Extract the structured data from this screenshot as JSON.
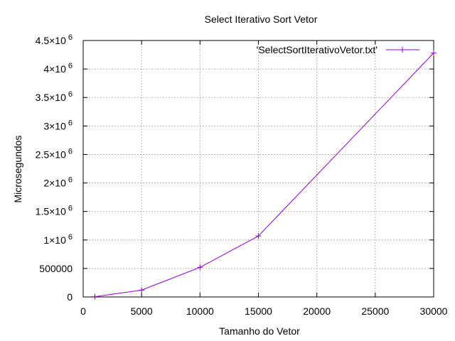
{
  "chart_data": {
    "type": "line",
    "title": "Select Iterativo Sort Vetor",
    "xlabel": "Tamanho do Vetor",
    "ylabel": "Microsegundos",
    "xlim": [
      0,
      30000
    ],
    "ylim": [
      0,
      4500000
    ],
    "x_ticks": [
      {
        "value": 0,
        "label": "0"
      },
      {
        "value": 5000,
        "label": "5000"
      },
      {
        "value": 10000,
        "label": "10000"
      },
      {
        "value": 15000,
        "label": "15000"
      },
      {
        "value": 20000,
        "label": "20000"
      },
      {
        "value": 25000,
        "label": "25000"
      },
      {
        "value": 30000,
        "label": "30000"
      }
    ],
    "y_ticks": [
      {
        "value": 0,
        "mant": "0",
        "exp": ""
      },
      {
        "value": 500000,
        "mant": "500000",
        "exp": ""
      },
      {
        "value": 1000000,
        "mant": "1×10",
        "exp": "6"
      },
      {
        "value": 1500000,
        "mant": "1.5×10",
        "exp": "6"
      },
      {
        "value": 2000000,
        "mant": "2×10",
        "exp": "6"
      },
      {
        "value": 2500000,
        "mant": "2.5×10",
        "exp": "6"
      },
      {
        "value": 3000000,
        "mant": "3×10",
        "exp": "6"
      },
      {
        "value": 3500000,
        "mant": "3.5×10",
        "exp": "6"
      },
      {
        "value": 4000000,
        "mant": "4×10",
        "exp": "6"
      },
      {
        "value": 4500000,
        "mant": "4.5×10",
        "exp": "6"
      }
    ],
    "grid": true,
    "legend_position": "top-right",
    "series": [
      {
        "name": "'SelectSortIterativoVetor.txt'",
        "color": "#9400d3",
        "marker": "plus",
        "x": [
          1000,
          5000,
          10000,
          15000,
          30000
        ],
        "y": [
          5000,
          120000,
          520000,
          1070000,
          4280000
        ]
      }
    ]
  }
}
